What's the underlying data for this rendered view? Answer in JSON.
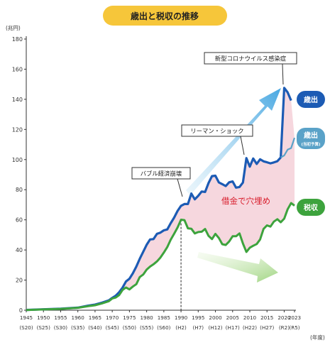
{
  "title": "歳出と税収の推移",
  "y_unit": "(兆円)",
  "x_unit": "(年度)",
  "annotations": {
    "covid": "新型コロナウイルス感染症",
    "lehman": "リーマン・ショック",
    "bubble": "バブル経済崩壊",
    "gap": "借金で穴埋め"
  },
  "badges": {
    "expenditure": "歳出",
    "expenditure_budget": "歳出",
    "expenditure_budget_note": "(当初予算)",
    "tax": "税収"
  },
  "colors": {
    "expenditure": "#1c5bb4",
    "expenditure_budget": "#5aa2c8",
    "tax": "#3da33d",
    "gap_fill": "#f6d7de",
    "title_bg": "#f6c63a",
    "gap_text": "#d81b2a"
  },
  "chart_data": {
    "type": "line",
    "ylim": [
      0,
      180
    ],
    "yticks": [
      0,
      20,
      40,
      60,
      80,
      100,
      120,
      140,
      160,
      180
    ],
    "xlim": [
      1945,
      2023
    ],
    "xticks": [
      1945,
      1950,
      1955,
      1960,
      1965,
      1970,
      1975,
      1980,
      1985,
      1990,
      1995,
      2000,
      2005,
      2010,
      2015,
      2020,
      2023
    ],
    "xtick_labels": [
      "1945",
      "1950",
      "1955",
      "1960",
      "1965",
      "1970",
      "1975",
      "1980",
      "1985",
      "1990",
      "1995",
      "2000",
      "2005",
      "2010",
      "2015",
      "2020",
      "2023"
    ],
    "xtick_sublabels": [
      "(S20)",
      "(S25)",
      "(S30)",
      "(S35)",
      "(S40)",
      "(S45)",
      "(S50)",
      "(S55)",
      "(S60)",
      "(H2)",
      "(H7)",
      "(H12)",
      "(H17)",
      "(H22)",
      "(H27)",
      "(R2)",
      "(R5)"
    ],
    "vline_x": 1990,
    "series": [
      {
        "name": "歳出",
        "x": [
          1945,
          1950,
          1955,
          1960,
          1963,
          1965,
          1967,
          1969,
          1970,
          1971,
          1972,
          1973,
          1974,
          1975,
          1976,
          1977,
          1978,
          1979,
          1980,
          1981,
          1982,
          1983,
          1984,
          1985,
          1986,
          1987,
          1988,
          1989,
          1990,
          1991,
          1992,
          1993,
          1994,
          1995,
          1996,
          1997,
          1998,
          1999,
          2000,
          2001,
          2002,
          2003,
          2004,
          2005,
          2006,
          2007,
          2008,
          2009,
          2010,
          2011,
          2012,
          2013,
          2014,
          2015,
          2016,
          2017,
          2018,
          2019,
          2020,
          2021,
          2022
        ],
        "values": [
          0.2,
          0.6,
          1.0,
          1.7,
          3.0,
          3.7,
          5.0,
          6.5,
          8.2,
          9.6,
          11.9,
          15.0,
          19.1,
          20.9,
          24.5,
          29.0,
          34.1,
          38.8,
          43.4,
          47.0,
          47.2,
          50.7,
          51.5,
          53.0,
          53.6,
          57.7,
          61.5,
          65.9,
          69.3,
          70.5,
          70.5,
          77.4,
          73.6,
          75.9,
          78.8,
          78.5,
          84.4,
          89.0,
          89.3,
          84.8,
          83.7,
          82.4,
          84.9,
          85.5,
          81.4,
          81.8,
          84.7,
          101.0,
          95.3,
          100.7,
          97.1,
          100.2,
          98.8,
          98.2,
          97.5,
          98.1,
          98.9,
          101.4,
          147.6,
          144.6,
          139.2
        ]
      },
      {
        "name": "歳出(当初予算)",
        "x": [
          2019,
          2020,
          2021,
          2022,
          2023
        ],
        "values": [
          101.4,
          102.7,
          106.6,
          107.6,
          114.4
        ]
      },
      {
        "name": "税収",
        "x": [
          1945,
          1950,
          1955,
          1960,
          1963,
          1965,
          1967,
          1969,
          1970,
          1971,
          1972,
          1973,
          1974,
          1975,
          1976,
          1977,
          1978,
          1979,
          1980,
          1981,
          1982,
          1983,
          1984,
          1985,
          1986,
          1987,
          1988,
          1989,
          1990,
          1991,
          1992,
          1993,
          1994,
          1995,
          1996,
          1997,
          1998,
          1999,
          2000,
          2001,
          2002,
          2003,
          2004,
          2005,
          2006,
          2007,
          2008,
          2009,
          2010,
          2011,
          2012,
          2013,
          2014,
          2015,
          2016,
          2017,
          2018,
          2019,
          2020,
          2021,
          2022,
          2023
        ],
        "values": [
          0.1,
          0.5,
          0.9,
          1.6,
          2.7,
          3.3,
          4.5,
          6.0,
          7.8,
          8.4,
          10.0,
          13.5,
          15.1,
          13.8,
          15.7,
          17.3,
          22.0,
          23.7,
          26.9,
          29.0,
          30.5,
          32.4,
          34.9,
          38.2,
          41.9,
          46.8,
          50.8,
          54.9,
          60.1,
          59.8,
          54.4,
          54.1,
          51.0,
          51.9,
          52.1,
          53.9,
          49.4,
          47.2,
          50.7,
          47.9,
          43.8,
          43.3,
          45.6,
          49.1,
          49.1,
          51.0,
          44.3,
          38.7,
          41.5,
          42.8,
          43.9,
          47.0,
          54.0,
          56.3,
          55.5,
          58.8,
          60.4,
          58.4,
          60.8,
          67.0,
          71.1,
          69.4
        ]
      }
    ]
  }
}
